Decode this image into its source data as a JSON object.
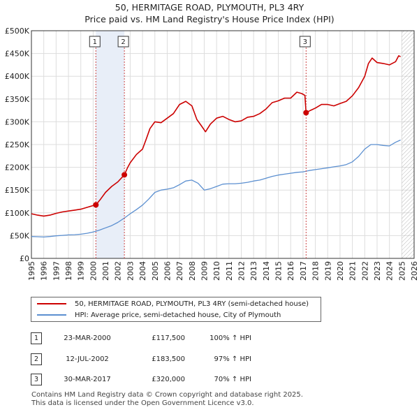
{
  "title_line1": "50, HERMITAGE ROAD, PLYMOUTH, PL3 4RY",
  "title_line2": "Price paid vs. HM Land Registry's House Price Index (HPI)",
  "legend": {
    "property_label": "50, HERMITAGE ROAD, PLYMOUTH, PL3 4RY (semi-detached house)",
    "hpi_label": "HPI: Average price, semi-detached house, City of Plymouth"
  },
  "colors": {
    "property": "#cc0000",
    "hpi": "#5b8fd0",
    "shade": "#e8eef8",
    "grid": "#dddddd"
  },
  "transactions": [
    {
      "num": "1",
      "date": "23-MAR-2000",
      "price": "£117,500",
      "hpi": "100% ↑ HPI"
    },
    {
      "num": "2",
      "date": "12-JUL-2002",
      "price": "£183,500",
      "hpi": "97% ↑ HPI"
    },
    {
      "num": "3",
      "date": "30-MAR-2017",
      "price": "£320,000",
      "hpi": "70% ↑ HPI"
    }
  ],
  "footer_line1": "Contains HM Land Registry data © Crown copyright and database right 2025.",
  "footer_line2": "This data is licensed under the Open Government Licence v3.0.",
  "chart_data": {
    "type": "line",
    "xlim": [
      1995,
      2026
    ],
    "ylim": [
      0,
      500000
    ],
    "y_ticks": [
      0,
      50000,
      100000,
      150000,
      200000,
      250000,
      300000,
      350000,
      400000,
      450000,
      500000
    ],
    "y_tick_labels": [
      "£0",
      "£50K",
      "£100K",
      "£150K",
      "£200K",
      "£250K",
      "£300K",
      "£350K",
      "£400K",
      "£450K",
      "£500K"
    ],
    "x_ticks": [
      "1995",
      "1996",
      "1997",
      "1998",
      "1999",
      "2000",
      "2001",
      "2002",
      "2003",
      "2004",
      "2005",
      "2006",
      "2007",
      "2008",
      "2009",
      "2010",
      "2011",
      "2012",
      "2013",
      "2014",
      "2015",
      "2016",
      "2017",
      "2018",
      "2019",
      "2020",
      "2021",
      "2022",
      "2023",
      "2024",
      "2025",
      "2026"
    ],
    "shaded_ranges": [
      [
        2000.22,
        2002.53
      ]
    ],
    "future_hatch_from": 2025.0,
    "markers": [
      {
        "label": "1",
        "x": 2000.22,
        "y": 117500
      },
      {
        "label": "2",
        "x": 2002.53,
        "y": 183500
      },
      {
        "label": "3",
        "x": 2017.25,
        "y": 320000
      }
    ],
    "series": [
      {
        "name": "50, HERMITAGE ROAD, PLYMOUTH, PL3 4RY (semi-detached house)",
        "x": [
          1995.0,
          1995.5,
          1996.0,
          1996.5,
          1997.0,
          1997.5,
          1998.0,
          1998.5,
          1999.0,
          1999.5,
          2000.0,
          2000.22,
          2000.6,
          2001.0,
          2001.5,
          2002.0,
          2002.53,
          2002.8,
          2003.0,
          2003.5,
          2004.0,
          2004.3,
          2004.6,
          2005.0,
          2005.5,
          2006.0,
          2006.5,
          2007.0,
          2007.5,
          2008.0,
          2008.4,
          2008.8,
          2009.1,
          2009.5,
          2010.0,
          2010.5,
          2011.0,
          2011.5,
          2012.0,
          2012.5,
          2013.0,
          2013.5,
          2014.0,
          2014.5,
          2015.0,
          2015.5,
          2016.0,
          2016.5,
          2016.9,
          2017.15,
          2017.25,
          2017.6,
          2018.0,
          2018.5,
          2019.0,
          2019.5,
          2020.0,
          2020.5,
          2021.0,
          2021.5,
          2022.0,
          2022.3,
          2022.6,
          2023.0,
          2023.5,
          2024.0,
          2024.5,
          2024.75,
          2024.9
        ],
        "values": [
          98000,
          95000,
          93000,
          95000,
          99000,
          102000,
          104000,
          106000,
          108000,
          112000,
          116000,
          117500,
          130000,
          145000,
          158000,
          168000,
          183500,
          200000,
          210000,
          228000,
          240000,
          262000,
          285000,
          300000,
          298000,
          308000,
          318000,
          338000,
          345000,
          335000,
          305000,
          290000,
          278000,
          295000,
          308000,
          312000,
          305000,
          300000,
          302000,
          310000,
          312000,
          318000,
          328000,
          342000,
          346000,
          352000,
          352000,
          365000,
          362000,
          358000,
          320000,
          325000,
          330000,
          338000,
          338000,
          335000,
          340000,
          345000,
          357000,
          375000,
          400000,
          428000,
          440000,
          430000,
          428000,
          425000,
          432000,
          445000,
          443000
        ]
      },
      {
        "name": "HPI: Average price, semi-detached house, City of Plymouth",
        "x": [
          1995.0,
          1995.5,
          1996.0,
          1996.5,
          1997.0,
          1997.5,
          1998.0,
          1998.5,
          1999.0,
          1999.5,
          2000.0,
          2000.5,
          2001.0,
          2001.5,
          2002.0,
          2002.5,
          2003.0,
          2003.5,
          2004.0,
          2004.5,
          2005.0,
          2005.5,
          2006.0,
          2006.5,
          2007.0,
          2007.5,
          2008.0,
          2008.5,
          2009.0,
          2009.5,
          2010.0,
          2010.5,
          2011.0,
          2011.5,
          2012.0,
          2012.5,
          2013.0,
          2013.5,
          2014.0,
          2014.5,
          2015.0,
          2015.5,
          2016.0,
          2016.5,
          2017.0,
          2017.5,
          2018.0,
          2018.5,
          2019.0,
          2019.5,
          2020.0,
          2020.5,
          2021.0,
          2021.5,
          2022.0,
          2022.5,
          2023.0,
          2023.5,
          2024.0,
          2024.5,
          2024.9
        ],
        "values": [
          48000,
          47500,
          47000,
          48000,
          49500,
          50500,
          51500,
          52000,
          53000,
          55000,
          58000,
          62000,
          67000,
          72000,
          79000,
          88000,
          98000,
          107000,
          117000,
          130000,
          145000,
          150000,
          152000,
          155000,
          162000,
          170000,
          172000,
          165000,
          150000,
          153000,
          158000,
          163000,
          164000,
          164000,
          165000,
          167000,
          170000,
          172000,
          176000,
          180000,
          183000,
          185000,
          187000,
          189000,
          190000,
          193000,
          195000,
          197000,
          199000,
          201000,
          203000,
          206000,
          212000,
          224000,
          240000,
          250000,
          250000,
          248000,
          247000,
          255000,
          260000
        ]
      }
    ]
  }
}
